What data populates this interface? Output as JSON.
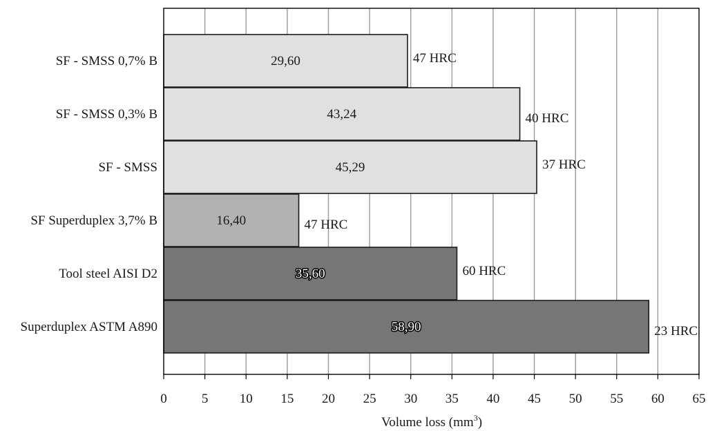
{
  "chart_data": {
    "type": "bar",
    "orientation": "horizontal",
    "title": "",
    "xlabel": "Volume loss (mm",
    "xlabel_superscript": "3",
    "xlabel_suffix": ")",
    "ylabel": "",
    "xlim": [
      0,
      65
    ],
    "xticks": [
      "0",
      "5",
      "10",
      "15",
      "20",
      "25",
      "30",
      "35",
      "40",
      "45",
      "50",
      "55",
      "60",
      "65"
    ],
    "grid": "vertical",
    "legend": "none",
    "categories": [
      "SF - SMSS 0,7% B",
      "SF - SMSS 0,3% B",
      "SF - SMSS",
      "SF Superduplex 3,7% B",
      "Tool steel AISI D2",
      "Superduplex ASTM A890"
    ],
    "values": [
      29.6,
      43.24,
      45.29,
      16.4,
      35.6,
      58.9
    ],
    "value_labels": [
      "29,60",
      "43,24",
      "45,29",
      "16,40",
      "35,60",
      "58,90"
    ],
    "hardness_labels": [
      "47 HRC",
      "40 HRC",
      "37 HRC",
      "47 HRC",
      "60 HRC",
      "23 HRC"
    ],
    "bar_colors": [
      "#e0e0e2",
      "#e0e0e2",
      "#e0e0e2",
      "#b2b2b5",
      "#767679",
      "#767679"
    ],
    "value_label_style": [
      "plain",
      "plain",
      "plain",
      "plain",
      "outlined",
      "outlined"
    ]
  }
}
